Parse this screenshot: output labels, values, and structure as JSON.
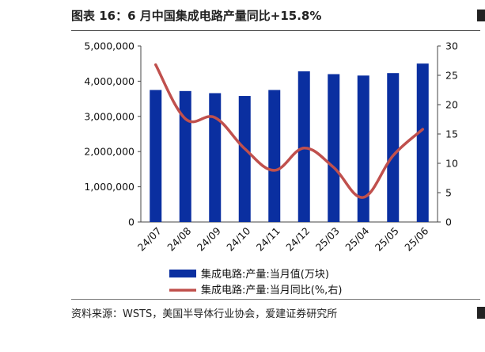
{
  "header": {
    "title": "图表 16：6 月中国集成电路产量同比+15.8%"
  },
  "footer": {
    "source": "资料来源：WSTS，美国半导体行业协会，爱建证券研究所"
  },
  "chart_data": {
    "type": "bar",
    "title": "图表 16：6 月中国集成电路产量同比+15.8%",
    "categories": [
      "24/07",
      "24/08",
      "24/09",
      "24/10",
      "24/11",
      "24/12",
      "25/03",
      "25/04",
      "25/05",
      "25/06"
    ],
    "left_axis": {
      "min": 0,
      "max": 5000000,
      "ticks": [
        0,
        1000000,
        2000000,
        3000000,
        4000000,
        5000000
      ],
      "tick_labels": [
        "0",
        "1,000,000",
        "2,000,000",
        "3,000,000",
        "4,000,000",
        "5,000,000"
      ]
    },
    "right_axis": {
      "min": 0,
      "max": 30,
      "ticks": [
        0,
        5,
        10,
        15,
        20,
        25,
        30
      ],
      "tick_labels": [
        "0",
        "5",
        "10",
        "15",
        "20",
        "25",
        "30"
      ]
    },
    "series": [
      {
        "name": "集成电路:产量:当月值(万块)",
        "type": "bar",
        "axis": "left",
        "color": "#0a2fa0",
        "values": [
          3750000,
          3720000,
          3660000,
          3580000,
          3750000,
          4280000,
          4200000,
          4160000,
          4230000,
          4500000
        ]
      },
      {
        "name": "集成电路:产量:当月同比(%,右)",
        "type": "line",
        "axis": "right",
        "color": "#c0504d",
        "values": [
          26.8,
          17.6,
          17.8,
          12.5,
          8.8,
          12.6,
          9.3,
          4.2,
          11.3,
          15.8
        ]
      }
    ],
    "legend_position": "bottom",
    "grid": false
  }
}
